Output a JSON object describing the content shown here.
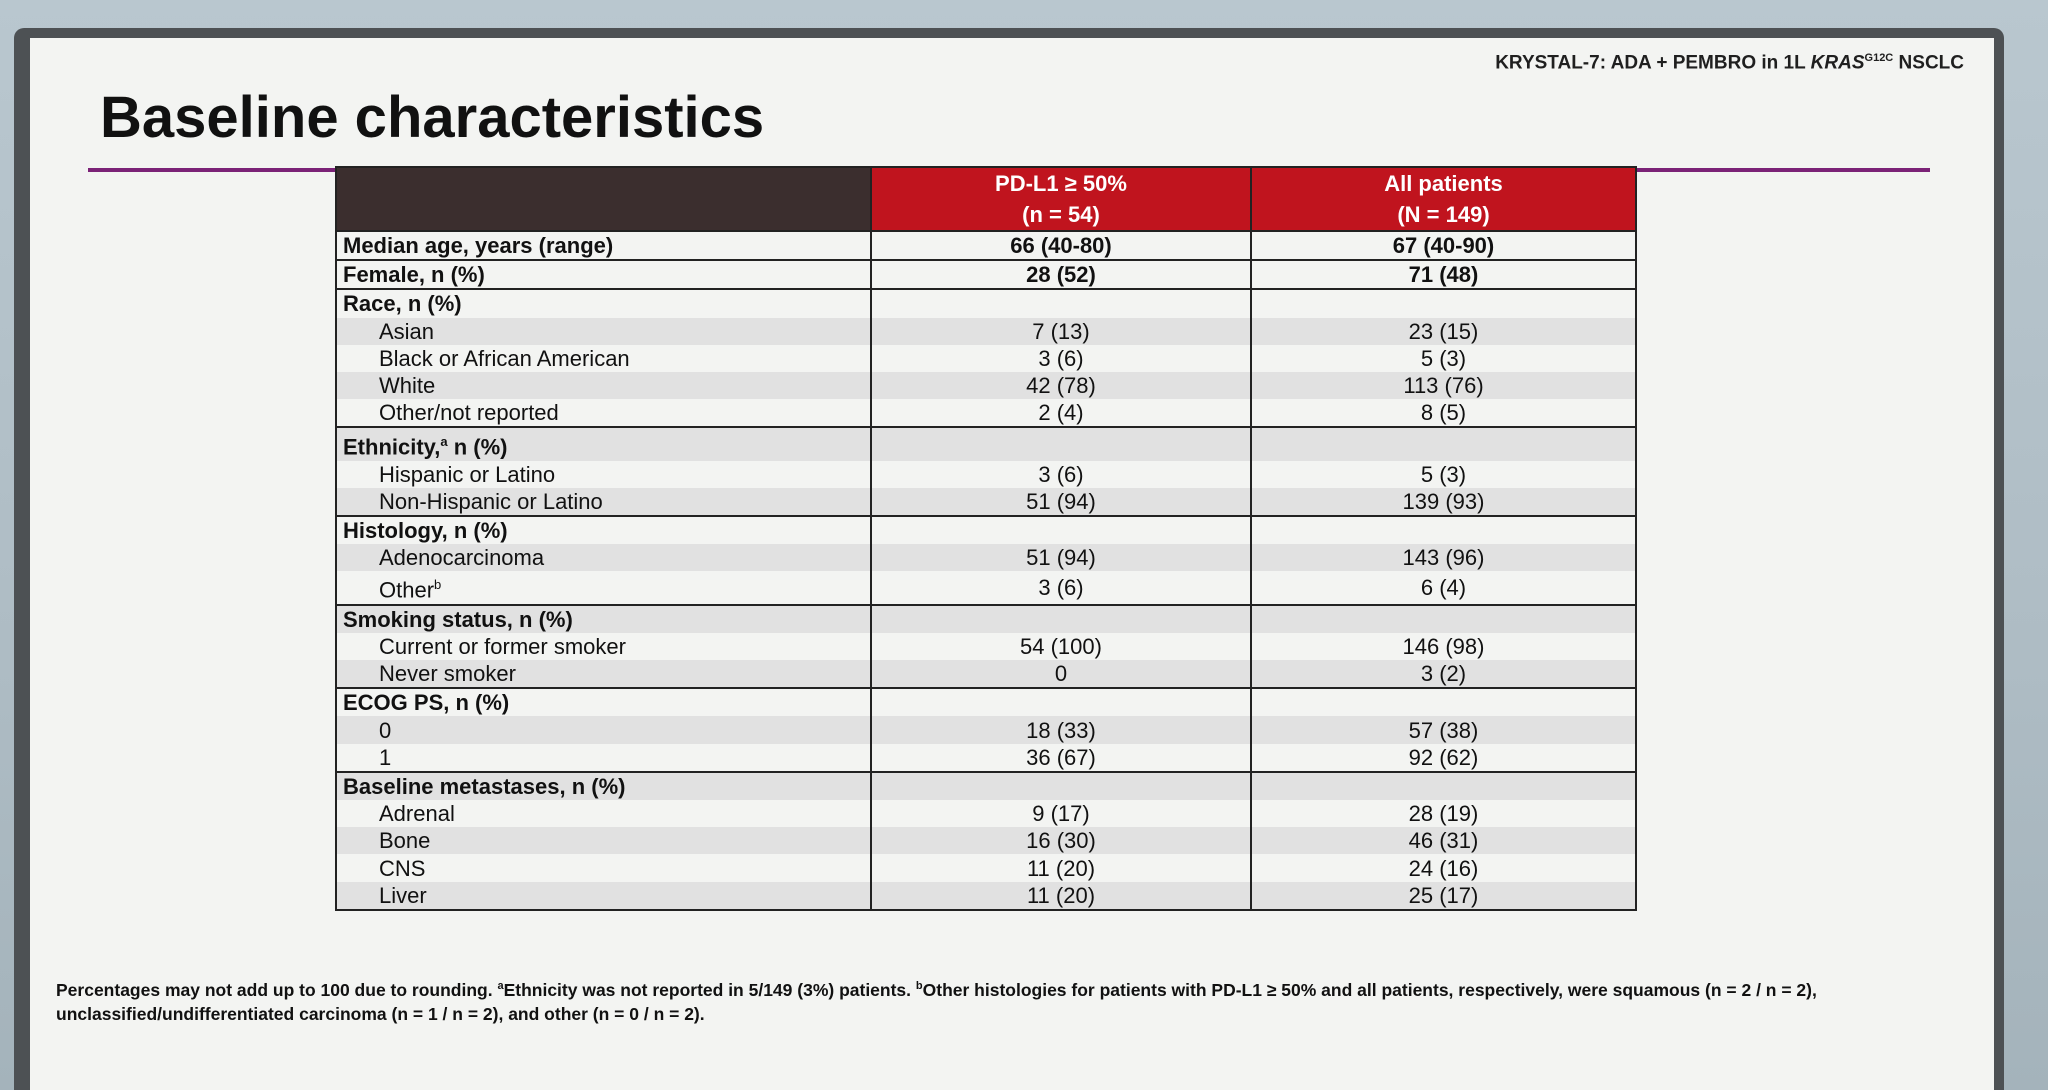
{
  "header_tag": {
    "prefix": "KRYSTAL-7: ADA + PEMBRO in 1L ",
    "gene": "KRAS",
    "mutation": "G12C",
    "suffix": " NSCLC"
  },
  "title": "Baseline characteristics",
  "table": {
    "columns": [
      {
        "line1": "PD-L1 ≥ 50%",
        "line2": "(n = 54)"
      },
      {
        "line1": "All patients",
        "line2": "(N = 149)"
      }
    ],
    "rows": [
      {
        "label": "Median age, years (range)",
        "pdl1": "66 (40-80)",
        "all": "67 (40-90)",
        "kind": "hdr"
      },
      {
        "label": "Female, n (%)",
        "pdl1": "28 (52)",
        "all": "71 (48)",
        "kind": "hdr"
      },
      {
        "label": "Race, n (%)",
        "pdl1": "",
        "all": "",
        "kind": "hdr"
      },
      {
        "label": "Asian",
        "pdl1": "7 (13)",
        "all": "23 (15)",
        "kind": "sub",
        "shade": true
      },
      {
        "label": "Black or African American",
        "pdl1": "3 (6)",
        "all": "5 (3)",
        "kind": "sub"
      },
      {
        "label": "White",
        "pdl1": "42 (78)",
        "all": "113 (76)",
        "kind": "sub",
        "shade": true
      },
      {
        "label": "Other/not reported",
        "pdl1": "2 (4)",
        "all": "8 (5)",
        "kind": "sub"
      },
      {
        "label": "Ethnicity,",
        "sup": "a",
        "label_after": " n (%)",
        "pdl1": "",
        "all": "",
        "kind": "hdr",
        "shade": true
      },
      {
        "label": "Hispanic or Latino",
        "pdl1": "3 (6)",
        "all": "5 (3)",
        "kind": "sub"
      },
      {
        "label": "Non-Hispanic or Latino",
        "pdl1": "51 (94)",
        "all": "139 (93)",
        "kind": "sub",
        "shade": true
      },
      {
        "label": "Histology, n (%)",
        "pdl1": "",
        "all": "",
        "kind": "hdr"
      },
      {
        "label": "Adenocarcinoma",
        "pdl1": "51 (94)",
        "all": "143 (96)",
        "kind": "sub",
        "shade": true
      },
      {
        "label": "Other",
        "sup": "b",
        "pdl1": "3 (6)",
        "all": "6 (4)",
        "kind": "sub"
      },
      {
        "label": "Smoking status, n (%)",
        "pdl1": "",
        "all": "",
        "kind": "hdr",
        "shade": true
      },
      {
        "label": "Current or former smoker",
        "pdl1": "54 (100)",
        "all": "146 (98)",
        "kind": "sub"
      },
      {
        "label": "Never smoker",
        "pdl1": "0",
        "all": "3 (2)",
        "kind": "sub",
        "shade": true
      },
      {
        "label": "ECOG PS, n (%)",
        "pdl1": "",
        "all": "",
        "kind": "hdr"
      },
      {
        "label": "0",
        "pdl1": "18 (33)",
        "all": "57 (38)",
        "kind": "sub",
        "shade": true
      },
      {
        "label": "1",
        "pdl1": "36 (67)",
        "all": "92 (62)",
        "kind": "sub"
      },
      {
        "label": "Baseline metastases, n (%)",
        "pdl1": "",
        "all": "",
        "kind": "hdr",
        "shade": true
      },
      {
        "label": "Adrenal",
        "pdl1": "9 (17)",
        "all": "28 (19)",
        "kind": "sub"
      },
      {
        "label": "Bone",
        "pdl1": "16 (30)",
        "all": "46 (31)",
        "kind": "sub",
        "shade": true
      },
      {
        "label": "CNS",
        "pdl1": "11 (20)",
        "all": "24 (16)",
        "kind": "sub"
      },
      {
        "label": "Liver",
        "pdl1": "11 (20)",
        "all": "25 (17)",
        "kind": "sub",
        "shade": true
      }
    ]
  },
  "footnote": {
    "p1": "Percentages may not add up to 100 due to rounding. ",
    "a_sup": "a",
    "p2": "Ethnicity was not reported in 5/149 (3%) patients. ",
    "b_sup": "b",
    "p3": "Other histologies for patients with PD-L1 ≥ 50% and all patients, respectively, were squamous (n = 2 / n = 2), unclassified/undifferentiated carcinoma (n = 1 / n = 2), and other (n = 0 / n = 2)."
  }
}
